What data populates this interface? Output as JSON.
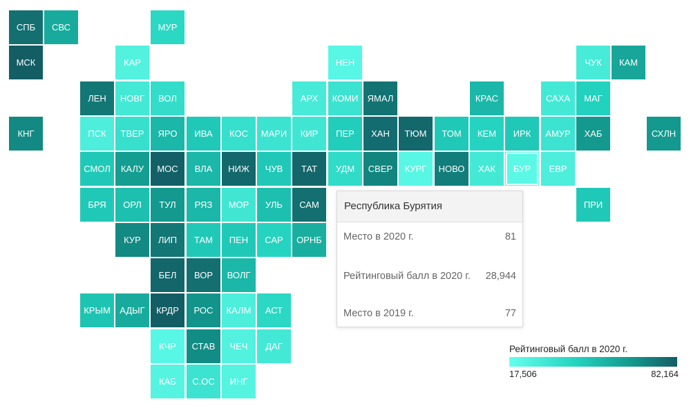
{
  "colors": {
    "min": "#66ffed",
    "max": "#135d64"
  },
  "regions": [
    {
      "code": "СПБ",
      "col": 0,
      "row": 0,
      "level": 0.92
    },
    {
      "code": "СВС",
      "col": 1,
      "row": 0,
      "level": 0.62
    },
    {
      "code": "МУР",
      "col": 4,
      "row": 0,
      "level": 0.35
    },
    {
      "code": "МСК",
      "col": 0,
      "row": 1,
      "level": 1.0
    },
    {
      "code": "КАР",
      "col": 3,
      "row": 1,
      "level": 0.12
    },
    {
      "code": "НЕН",
      "col": 9,
      "row": 1,
      "level": 0.08
    },
    {
      "code": "ЧУК",
      "col": 16,
      "row": 1,
      "level": 0.18
    },
    {
      "code": "КАМ",
      "col": 17,
      "row": 1,
      "level": 0.65
    },
    {
      "code": "ЛЕН",
      "col": 2,
      "row": 2,
      "level": 0.88
    },
    {
      "code": "НОВГ",
      "col": 3,
      "row": 2,
      "level": 0.2
    },
    {
      "code": "ВОЛ",
      "col": 4,
      "row": 2,
      "level": 0.3
    },
    {
      "code": "АРХ",
      "col": 8,
      "row": 2,
      "level": 0.18
    },
    {
      "code": "КОМИ",
      "col": 9,
      "row": 2,
      "level": 0.25
    },
    {
      "code": "ЯМАЛ",
      "col": 10,
      "row": 2,
      "level": 0.9
    },
    {
      "code": "КРАС",
      "col": 13,
      "row": 2,
      "level": 0.55
    },
    {
      "code": "САХА",
      "col": 15,
      "row": 2,
      "level": 0.2
    },
    {
      "code": "МАГ",
      "col": 16,
      "row": 2,
      "level": 0.4
    },
    {
      "code": "КНГ",
      "col": 0,
      "row": 3,
      "level": 0.8
    },
    {
      "code": "ПСК",
      "col": 2,
      "row": 3,
      "level": 0.15
    },
    {
      "code": "ТВЕР",
      "col": 3,
      "row": 3,
      "level": 0.28
    },
    {
      "code": "ЯРО",
      "col": 4,
      "row": 3,
      "level": 0.55
    },
    {
      "code": "ИВА",
      "col": 5,
      "row": 3,
      "level": 0.45
    },
    {
      "code": "КОС",
      "col": 6,
      "row": 3,
      "level": 0.28
    },
    {
      "code": "МАРИ",
      "col": 7,
      "row": 3,
      "level": 0.25
    },
    {
      "code": "КИР",
      "col": 8,
      "row": 3,
      "level": 0.22
    },
    {
      "code": "ПЕР",
      "col": 9,
      "row": 3,
      "level": 0.42
    },
    {
      "code": "ХАН",
      "col": 10,
      "row": 3,
      "level": 0.93
    },
    {
      "code": "ТЮМ",
      "col": 11,
      "row": 3,
      "level": 0.95
    },
    {
      "code": "ТОМ",
      "col": 12,
      "row": 3,
      "level": 0.45
    },
    {
      "code": "КЕМ",
      "col": 13,
      "row": 3,
      "level": 0.38
    },
    {
      "code": "ИРК",
      "col": 14,
      "row": 3,
      "level": 0.45
    },
    {
      "code": "АМУР",
      "col": 15,
      "row": 3,
      "level": 0.25
    },
    {
      "code": "ХАБ",
      "col": 16,
      "row": 3,
      "level": 0.72
    },
    {
      "code": "СХЛН",
      "col": 18,
      "row": 3,
      "level": 0.72
    },
    {
      "code": "СМОЛ",
      "col": 2,
      "row": 4,
      "level": 0.45
    },
    {
      "code": "КАЛУ",
      "col": 3,
      "row": 4,
      "level": 0.7
    },
    {
      "code": "МОС",
      "col": 4,
      "row": 4,
      "level": 0.98
    },
    {
      "code": "ВЛА",
      "col": 5,
      "row": 4,
      "level": 0.55
    },
    {
      "code": "НИЖ",
      "col": 6,
      "row": 4,
      "level": 0.95
    },
    {
      "code": "ЧУВ",
      "col": 7,
      "row": 4,
      "level": 0.45
    },
    {
      "code": "ТАТ",
      "col": 8,
      "row": 4,
      "level": 0.96
    },
    {
      "code": "УДМ",
      "col": 9,
      "row": 4,
      "level": 0.32
    },
    {
      "code": "СВЕР",
      "col": 10,
      "row": 4,
      "level": 0.82
    },
    {
      "code": "КУРГ",
      "col": 11,
      "row": 4,
      "level": 0.08
    },
    {
      "code": "НОВО",
      "col": 12,
      "row": 4,
      "level": 0.85
    },
    {
      "code": "ХАК",
      "col": 13,
      "row": 4,
      "level": 0.2
    },
    {
      "code": "БУР",
      "col": 14,
      "row": 4,
      "level": 0.06
    },
    {
      "code": "ЕВР",
      "col": 15,
      "row": 4,
      "level": 0.15
    },
    {
      "code": "БРЯ",
      "col": 2,
      "row": 5,
      "level": 0.45
    },
    {
      "code": "ОРЛ",
      "col": 3,
      "row": 5,
      "level": 0.5
    },
    {
      "code": "ТУЛ",
      "col": 4,
      "row": 5,
      "level": 0.72
    },
    {
      "code": "РЯЗ",
      "col": 5,
      "row": 5,
      "level": 0.55
    },
    {
      "code": "МОР",
      "col": 6,
      "row": 5,
      "level": 0.22
    },
    {
      "code": "УЛЬ",
      "col": 7,
      "row": 5,
      "level": 0.5
    },
    {
      "code": "САМ",
      "col": 8,
      "row": 5,
      "level": 0.92
    },
    {
      "code": "ПРИ",
      "col": 16,
      "row": 5,
      "level": 0.45
    },
    {
      "code": "КУР",
      "col": 3,
      "row": 6,
      "level": 0.8
    },
    {
      "code": "ЛИП",
      "col": 4,
      "row": 6,
      "level": 0.88
    },
    {
      "code": "ТАМ",
      "col": 5,
      "row": 6,
      "level": 0.45
    },
    {
      "code": "ПЕН",
      "col": 6,
      "row": 6,
      "level": 0.45
    },
    {
      "code": "САР",
      "col": 7,
      "row": 6,
      "level": 0.38
    },
    {
      "code": "ОРНБ",
      "col": 8,
      "row": 6,
      "level": 0.6
    },
    {
      "code": "БЕЛ",
      "col": 4,
      "row": 7,
      "level": 0.96
    },
    {
      "code": "ВОР",
      "col": 5,
      "row": 7,
      "level": 0.92
    },
    {
      "code": "ВОЛГ",
      "col": 6,
      "row": 7,
      "level": 0.55
    },
    {
      "code": "КРЫМ",
      "col": 2,
      "row": 8,
      "level": 0.48
    },
    {
      "code": "АДЫГ",
      "col": 3,
      "row": 8,
      "level": 0.62
    },
    {
      "code": "КРДР",
      "col": 4,
      "row": 8,
      "level": 1.0
    },
    {
      "code": "РОС",
      "col": 5,
      "row": 8,
      "level": 0.75
    },
    {
      "code": "КАЛМ",
      "col": 6,
      "row": 8,
      "level": 0.15
    },
    {
      "code": "АСТ",
      "col": 7,
      "row": 8,
      "level": 0.35
    },
    {
      "code": "КЧР",
      "col": 4,
      "row": 9,
      "level": 0.08
    },
    {
      "code": "СТАВ",
      "col": 5,
      "row": 9,
      "level": 0.78
    },
    {
      "code": "ЧЕЧ",
      "col": 6,
      "row": 9,
      "level": 0.12
    },
    {
      "code": "ДАГ",
      "col": 7,
      "row": 9,
      "level": 0.2
    },
    {
      "code": "КАБ",
      "col": 4,
      "row": 10,
      "level": 0.1
    },
    {
      "code": "С.ОС",
      "col": 5,
      "row": 10,
      "level": 0.25
    },
    {
      "code": "ИНГ",
      "col": 6,
      "row": 10,
      "level": 0.1
    }
  ],
  "tooltip": {
    "title": "Республика Бурятия",
    "rows": [
      {
        "label": "Место в 2020 г.",
        "value": "81"
      },
      {
        "label": "Рейтинговый балл в 2020 г.",
        "value": "28,944"
      },
      {
        "label": "Место в 2019 г.",
        "value": "77"
      }
    ]
  },
  "legend": {
    "title": "Рейтинговый балл в 2020 г.",
    "min_label": "17,506",
    "max_label": "82,164"
  }
}
